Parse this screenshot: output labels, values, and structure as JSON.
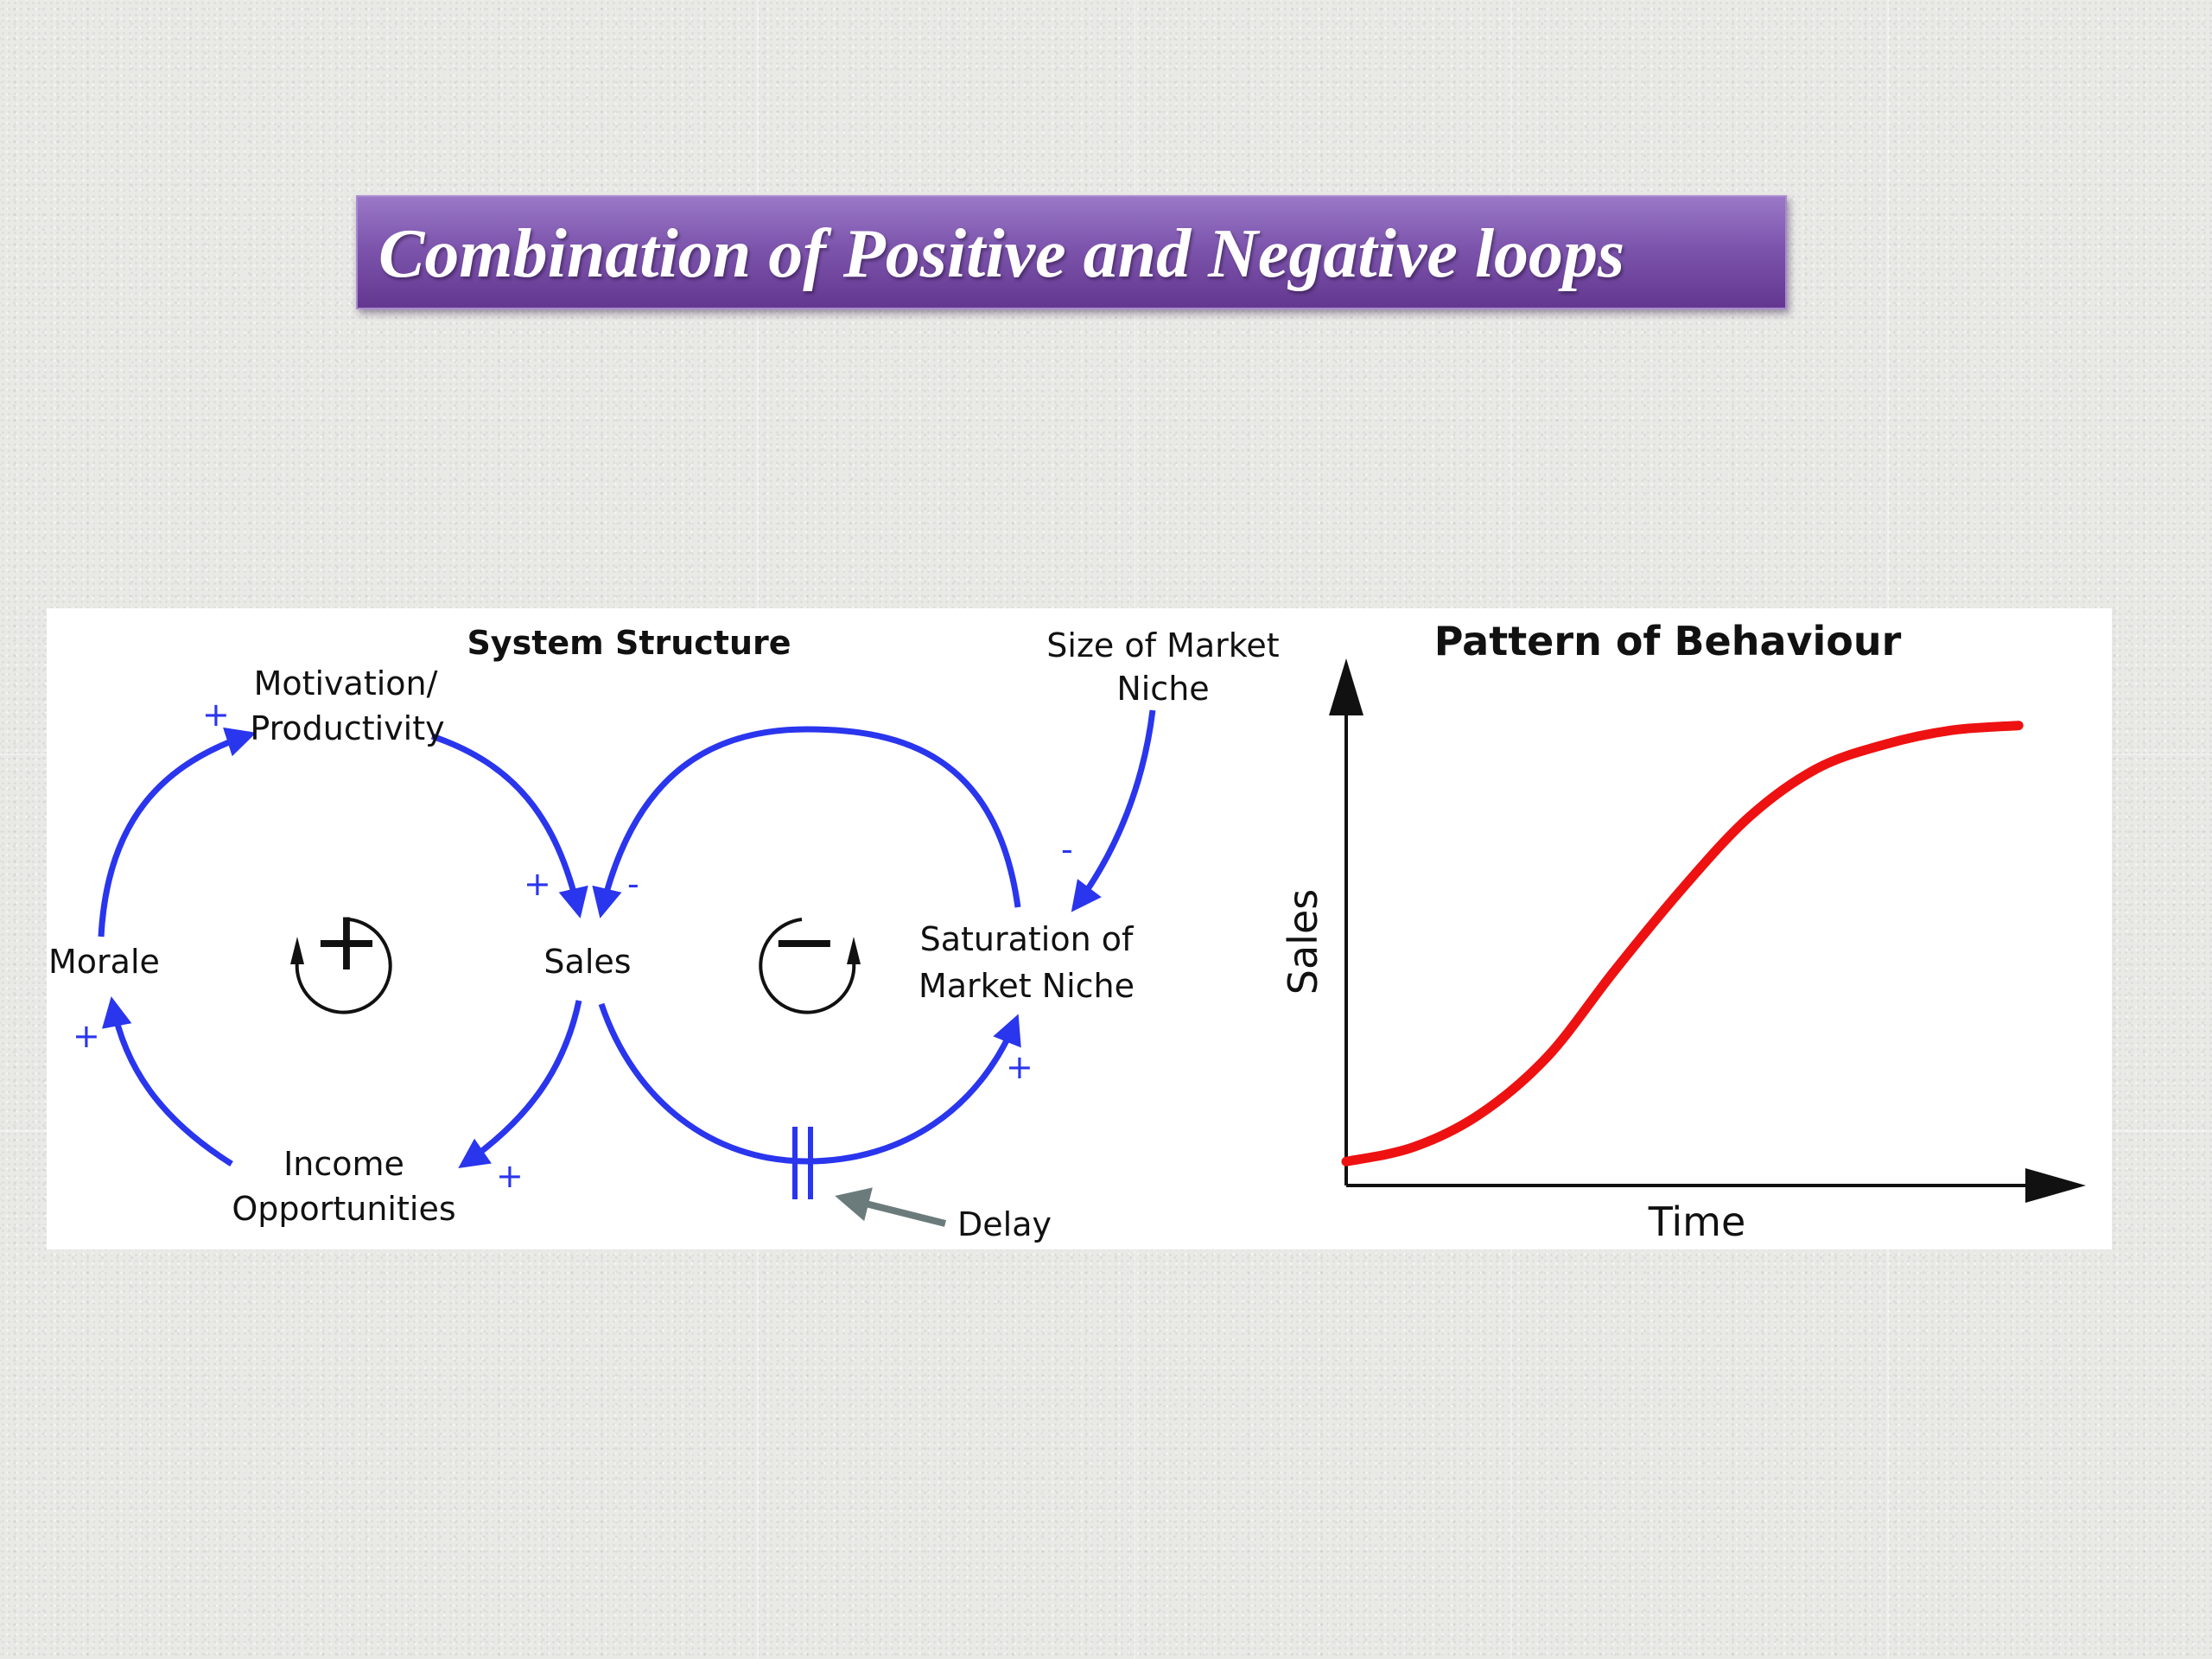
{
  "slide": {
    "title": "Combination of Positive and Negative loops"
  },
  "system_structure": {
    "heading": "System Structure",
    "nodes": {
      "motivation_line1": "Motivation/",
      "motivation_line2": "Productivity",
      "morale": "Morale",
      "sales": "Sales",
      "income_line1": "Income",
      "income_line2": "Opportunities",
      "saturation_line1": "Saturation of",
      "saturation_line2": "Market Niche",
      "size_line1": "Size of Market",
      "size_line2": "Niche",
      "delay": "Delay"
    },
    "polarities": {
      "morale_to_motivation": "+",
      "motivation_to_sales": "+",
      "saturation_to_sales": "-",
      "size_to_saturation": "-",
      "sales_to_income": "+",
      "income_to_morale": "+",
      "sales_to_saturation": "+"
    },
    "loop_markers": {
      "reinforcing": "+",
      "balancing": "−"
    },
    "colors": {
      "links": "#2a35ee",
      "delay_arrow": "#6b7b7b"
    }
  },
  "behaviour_chart": {
    "heading": "Pattern of Behaviour",
    "xlabel": "Time",
    "ylabel": "Sales",
    "curve_color": "#ee1111"
  },
  "chart_data": {
    "type": "line",
    "title": "Pattern of Behaviour",
    "xlabel": "Time",
    "ylabel": "Sales",
    "shape": "S-shaped growth",
    "series": [
      {
        "x": [
          0,
          0.1,
          0.2,
          0.3,
          0.4,
          0.5,
          0.6,
          0.7,
          0.8,
          0.9,
          1.0
        ],
        "y": [
          0.05,
          0.08,
          0.15,
          0.27,
          0.45,
          0.62,
          0.77,
          0.87,
          0.92,
          0.95,
          0.96
        ]
      }
    ],
    "xlim": [
      0,
      1.1
    ],
    "ylim": [
      0,
      1.1
    ],
    "grid": false,
    "legend": "none"
  }
}
